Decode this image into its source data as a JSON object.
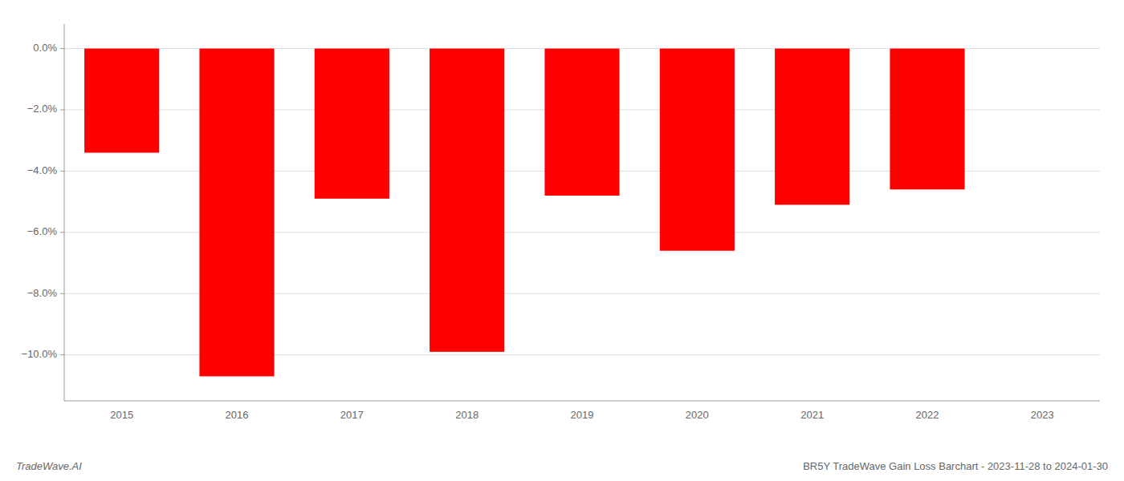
{
  "chart_data": {
    "type": "bar",
    "title": "BR5Y TradeWave Gain Loss Barchart - 2023-11-28 to 2024-01-30",
    "annotations": [
      "TradeWave.AI"
    ],
    "categories": [
      "2015",
      "2016",
      "2017",
      "2018",
      "2019",
      "2020",
      "2021",
      "2022",
      "2023"
    ],
    "values": [
      -0.034,
      -0.107,
      -0.049,
      -0.099,
      -0.048,
      -0.066,
      -0.051,
      -0.046,
      0.0
    ],
    "color": "#ff0000",
    "ylim": [
      -0.115,
      0.008
    ],
    "yticks": [
      {
        "value": 0.0,
        "label": "0.0%"
      },
      {
        "value": -0.02,
        "label": "−2.0%"
      },
      {
        "value": -0.04,
        "label": "−4.0%"
      },
      {
        "value": -0.06,
        "label": "−6.0%"
      },
      {
        "value": -0.08,
        "label": "−8.0%"
      },
      {
        "value": -0.1,
        "label": "−10.0%"
      }
    ],
    "grid": true
  }
}
